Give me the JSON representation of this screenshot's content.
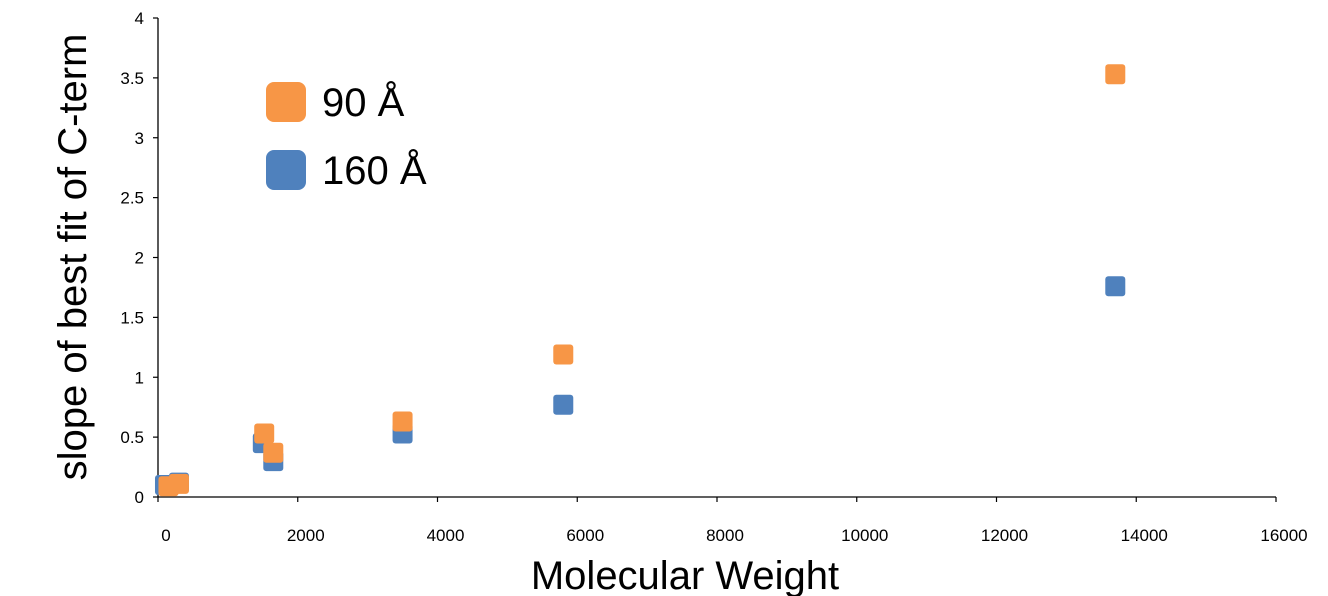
{
  "chart_data": {
    "type": "scatter",
    "title": "",
    "xlabel": "Molecular Weight",
    "ylabel": "slope of best fit of C-term",
    "xlim": [
      0,
      16000
    ],
    "ylim": [
      0,
      4
    ],
    "xticks": [
      0,
      2000,
      4000,
      6000,
      8000,
      10000,
      12000,
      14000,
      16000
    ],
    "yticks": [
      0,
      0.5,
      1,
      1.5,
      2,
      2.5,
      3,
      3.5,
      4
    ],
    "xtick_labels": [
      "0",
      "2000",
      "4000",
      "6000",
      "8000",
      "10000",
      "12000",
      "14000",
      "16000"
    ],
    "ytick_labels": [
      "0",
      "0.5",
      "1",
      "1.5",
      "2",
      "2.5",
      "3",
      "3.5",
      "4"
    ],
    "grid": false,
    "legend_position": "top-left",
    "series": [
      {
        "name": "160 Å",
        "color": "#4f81bd",
        "marker": "square",
        "x": [
          100,
          300,
          1500,
          1650,
          3500,
          5800,
          13700
        ],
        "y": [
          0.1,
          0.12,
          0.45,
          0.3,
          0.53,
          0.77,
          1.76
        ]
      },
      {
        "name": "90 Å",
        "color": "#f79646",
        "marker": "square",
        "x": [
          150,
          300,
          1520,
          1650,
          3500,
          5800,
          13700
        ],
        "y": [
          0.09,
          0.11,
          0.53,
          0.37,
          0.63,
          1.19,
          3.53
        ]
      }
    ],
    "legend_order": [
      1,
      0
    ]
  }
}
